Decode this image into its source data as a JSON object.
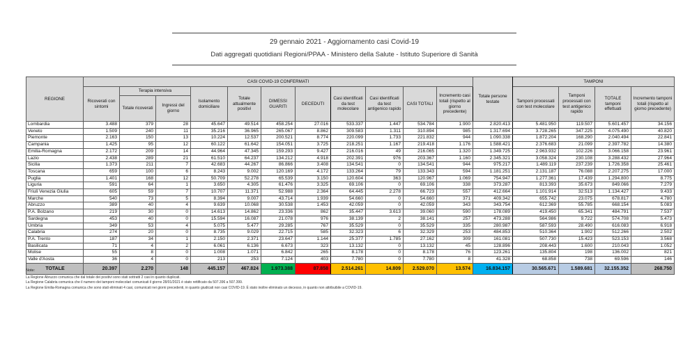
{
  "page": {
    "title_line1": "29 gennaio 2021 - Aggiornamento casi Covid-19",
    "title_line2": "Dati aggregati quotidiani Regioni/PPAA - Ministero della Salute - Istituto Superiore di Sanità"
  },
  "colors": {
    "header_gray": "#a6a6a6",
    "band_gray": "#d9d9d9",
    "guariti_green": "#00b050",
    "deceduti_red": "#ff0000",
    "casi_orange": "#ffc000",
    "testate_cyan": "#00b0f0",
    "tamponi_lightblue": "#dce6f1",
    "tamponi_total_blue": "#b8cce4",
    "total_row_gray": "#bfbfbf"
  },
  "table": {
    "col_region": "REGIONE",
    "group_casi": "CASI COVID-19 CONFERMATI",
    "group_tamponi": "TAMPONI",
    "h_ricoverati": "Ricoverati con sintomi",
    "h_terapia": "Terapia intensiva",
    "h_ti_totale": "Totale ricoverati",
    "h_ti_ingressi": "Ingressi del giorno",
    "h_isolamento": "Isolamento domiciliare",
    "h_positivi": "Totale attualmente positivi",
    "h_guariti": "DIMESSI GUARITI",
    "h_deceduti": "DECEDUTI",
    "h_casi_mol": "Casi identificati da test molecolare",
    "h_casi_ant": "Casi identificati da test antigenico rapido",
    "h_casi_tot": "CASI TOTALI",
    "h_incr_casi": "Incremento casi totali (rispetto al giorno precedente)",
    "h_testate": "Totale persone testate",
    "h_tamp_mol": "Tamponi processati con test molecolare",
    "h_tamp_ant": "Tamponi processati con test antigenico rapido",
    "h_tamp_tot": "TOTALE tamponi effettuati",
    "h_incr_tamp": "Incremento tamponi totali (rispetto al giorno precedente)",
    "columns_order": [
      "Ricoverati con sintomi",
      "Terapia intensiva - Totale ricoverati",
      "Terapia intensiva - Ingressi del giorno",
      "Isolamento domiciliare",
      "Totale attualmente positivi",
      "Dimessi guariti",
      "Deceduti",
      "Casi identificati da test molecolare",
      "Casi identificati da test antigenico rapido",
      "Casi totali",
      "Incremento casi totali",
      "Totale persone testate",
      "Tamponi processati con test molecolare",
      "Tamponi processati con test antigenico rapido",
      "Totale tamponi effettuati",
      "Incremento tamponi totali"
    ],
    "rows": [
      {
        "region": "Lombardia",
        "values": [
          "3.488",
          "379",
          "28",
          "45.647",
          "49.514",
          "458.254",
          "27.016",
          "533.337",
          "1.447",
          "534.784",
          "1.900",
          "2.820.413",
          "5.481.950",
          "119.507",
          "5.601.457",
          "34.156"
        ]
      },
      {
        "region": "Veneto",
        "values": [
          "1.509",
          "240",
          "11",
          "35.216",
          "36.965",
          "265.067",
          "8.862",
          "309.583",
          "1.311",
          "310.894",
          "985",
          "1.317.694",
          "3.728.265",
          "347.225",
          "4.075.490",
          "40.820"
        ]
      },
      {
        "region": "Piemonte",
        "values": [
          "2.163",
          "150",
          "13",
          "10.224",
          "12.537",
          "200.521",
          "8.774",
          "220.099",
          "1.733",
          "221.832",
          "944",
          "1.090.338",
          "1.872.204",
          "168.290",
          "2.040.494",
          "22.841"
        ]
      },
      {
        "region": "Campania",
        "values": [
          "1.425",
          "95",
          "12",
          "60.122",
          "61.642",
          "154.051",
          "3.725",
          "218.251",
          "1.167",
          "219.418",
          "1.176",
          "1.588.421",
          "2.376.683",
          "21.099",
          "2.397.782",
          "14.380"
        ]
      },
      {
        "region": "Emilia-Romagna",
        "values": [
          "2.172",
          "209",
          "14",
          "44.964",
          "47.345",
          "159.293",
          "9.427",
          "216.016",
          "49",
          "216.065",
          "1.320",
          "1.349.725",
          "2.963.932",
          "102.226",
          "3.066.158",
          "23.961"
        ]
      },
      {
        "region": "Lazio",
        "values": [
          "2.438",
          "289",
          "21",
          "61.510",
          "64.237",
          "134.212",
          "4.918",
          "202.391",
          "976",
          "203.367",
          "1.160",
          "2.345.321",
          "3.058.324",
          "230.108",
          "3.288.432",
          "27.964"
        ]
      },
      {
        "region": "Sicilia",
        "values": [
          "1.373",
          "211",
          "7",
          "42.683",
          "44.267",
          "86.866",
          "3.408",
          "134.541",
          "0",
          "134.541",
          "944",
          "975.217",
          "1.489.119",
          "237.239",
          "1.726.358",
          "25.461"
        ]
      },
      {
        "region": "Toscana",
        "values": [
          "659",
          "100",
          "6",
          "8.243",
          "9.002",
          "120.169",
          "4.172",
          "133.264",
          "79",
          "133.343",
          "594",
          "1.181.251",
          "2.131.187",
          "76.088",
          "2.207.275",
          "17.000"
        ]
      },
      {
        "region": "Puglia",
        "values": [
          "1.401",
          "168",
          "12",
          "50.709",
          "52.278",
          "65.539",
          "3.150",
          "120.604",
          "363",
          "120.967",
          "1.069",
          "754.947",
          "1.277.361",
          "17.439",
          "1.294.800",
          "8.775"
        ]
      },
      {
        "region": "Liguria",
        "values": [
          "591",
          "64",
          "1",
          "3.650",
          "4.305",
          "61.476",
          "3.325",
          "69.106",
          "0",
          "69.106",
          "338",
          "373.287",
          "813.393",
          "35.673",
          "849.066",
          "7.279"
        ]
      },
      {
        "region": "Friuli Venezia Giulia",
        "values": [
          "605",
          "59",
          "7",
          "10.707",
          "11.371",
          "52.988",
          "2.364",
          "64.445",
          "2.278",
          "66.723",
          "557",
          "412.664",
          "1.101.914",
          "32.513",
          "1.134.427",
          "9.433"
        ]
      },
      {
        "region": "Marche",
        "values": [
          "540",
          "73",
          "5",
          "8.394",
          "9.007",
          "43.714",
          "1.939",
          "54.660",
          "0",
          "54.660",
          "371",
          "409.342",
          "655.742",
          "23.075",
          "678.817",
          "4.780"
        ]
      },
      {
        "region": "Abruzzo",
        "values": [
          "389",
          "40",
          "4",
          "9.639",
          "10.068",
          "30.538",
          "1.453",
          "42.059",
          "0",
          "42.059",
          "343",
          "343.754",
          "612.369",
          "55.785",
          "668.154",
          "5.083"
        ]
      },
      {
        "region": "P.A. Bolzano",
        "values": [
          "219",
          "30",
          "0",
          "14.613",
          "14.862",
          "23.336",
          "862",
          "35.447",
          "3.613",
          "39.060",
          "590",
          "178.089",
          "419.450",
          "65.341",
          "484.791",
          "7.537"
        ]
      },
      {
        "region": "Sardegna",
        "values": [
          "453",
          "40",
          "0",
          "15.594",
          "16.087",
          "21.078",
          "976",
          "38.139",
          "2",
          "38.141",
          "257",
          "473.288",
          "564.986",
          "9.722",
          "574.708",
          "5.473"
        ]
      },
      {
        "region": "Umbria",
        "values": [
          "349",
          "53",
          "4",
          "5.075",
          "5.477",
          "29.285",
          "767",
          "35.529",
          "0",
          "35.529",
          "335",
          "280.987",
          "587.593",
          "28.490",
          "616.083",
          "6.918"
        ]
      },
      {
        "region": "Calabria",
        "values": [
          "274",
          "20",
          "0",
          "8.735",
          "9.029",
          "22.715",
          "585",
          "32.323",
          "6",
          "32.329",
          "253",
          "484.853",
          "510.364",
          "1.902",
          "512.266",
          "2.502"
        ]
      },
      {
        "region": "P.A. Trento",
        "values": [
          "187",
          "34",
          "1",
          "2.150",
          "2.371",
          "23.647",
          "1.144",
          "25.377",
          "1.785",
          "27.162",
          "309",
          "161.081",
          "507.730",
          "15.423",
          "523.153",
          "3.568"
        ]
      },
      {
        "region": "Basilicata",
        "values": [
          "71",
          "4",
          "2",
          "6.061",
          "6.136",
          "6.673",
          "323",
          "13.132",
          "0",
          "13.132",
          "45",
          "128.896",
          "208.443",
          "1.600",
          "210.043",
          "1.052"
        ]
      },
      {
        "region": "Molise",
        "values": [
          "55",
          "8",
          "0",
          "1.008",
          "1.071",
          "6.842",
          "265",
          "8.178",
          "0",
          "8.178",
          "76",
          "123.261",
          "135.804",
          "198",
          "136.002",
          "821"
        ]
      },
      {
        "region": "Valle d'Aosta",
        "values": [
          "36",
          "4",
          "0",
          "213",
          "253",
          "7.124",
          "403",
          "7.780",
          "0",
          "7.780",
          "8",
          "41.328",
          "68.858",
          "738",
          "69.596",
          "146"
        ]
      }
    ],
    "total_row": {
      "region": "TOTALE",
      "values": [
        "20.397",
        "2.270",
        "148",
        "445.157",
        "467.824",
        "1.973.388",
        "87.858",
        "2.514.261",
        "14.809",
        "2.529.070",
        "13.574",
        "16.834.157",
        "30.565.671",
        "1.589.681",
        "32.155.352",
        "268.750"
      ]
    }
  },
  "notes": {
    "label": "Note:",
    "items": [
      "La Regione Abruzzo comunica che dal totale dei positivi sono stati sottratti 2 casi in quanto duplicati.",
      "La Regione Calabria comunica che il numero dei tamponi molecolari comunicati il giorno 28/01/2021 è stato rettificato da 507.396 a 507.399.",
      "La Regione Emilia-Romagna comunica che sono stati eliminati 4 casi, comunicati nei giorni precedenti, in quanto giudicati non casi COVID-19. È stato inoltre eliminato un decesso, in quanto non attribuibile a COVID-19."
    ]
  }
}
